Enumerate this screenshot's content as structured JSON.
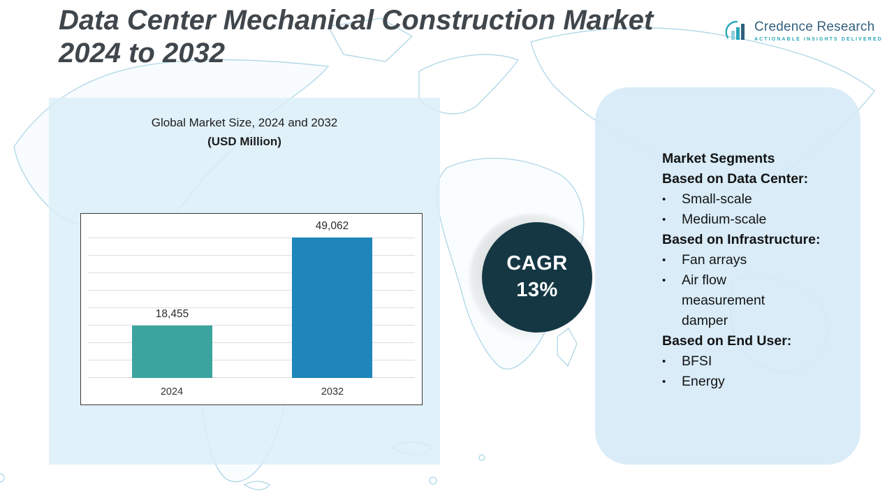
{
  "header": {
    "title_line1": "Data Center Mechanical Construction Market",
    "title_line2": "2024 to 2032"
  },
  "logo": {
    "name": "Credence Research",
    "tagline": "Actionable Insights Delivered"
  },
  "cagr_badge": {
    "label": "CAGR",
    "value": "13%"
  },
  "segments_panel": {
    "title": "Market Segments",
    "groups": [
      {
        "heading": "Based on Data Center:",
        "items": [
          "Small-scale",
          "Medium-scale"
        ]
      },
      {
        "heading": "Based on Infrastructure:",
        "items": [
          "Fan arrays",
          "Air flow measurement damper"
        ]
      },
      {
        "heading": "Based on End User:",
        "items": [
          "BFSI",
          "Energy"
        ]
      }
    ]
  },
  "chart_data": {
    "type": "bar",
    "title": "Global Market Size, 2024 and 2032",
    "subtitle": "(USD Million)",
    "categories": [
      "2024",
      "2032"
    ],
    "values": [
      18455,
      49062
    ],
    "value_labels": [
      "18,455",
      "49,062"
    ],
    "ylim": [
      0,
      55000
    ],
    "grid": true,
    "legend": "none",
    "bar_colors": [
      "#3ba49f",
      "#1e86bb"
    ]
  },
  "colors": {
    "panel_blue": "#daeef8",
    "badge_dark": "#153744",
    "bar_2024": "#3ba49f",
    "bar_2032": "#1e86bb",
    "logo_blue": "#33607f",
    "logo_teal": "#2aa6b8",
    "title_gray": "#3f464c"
  }
}
